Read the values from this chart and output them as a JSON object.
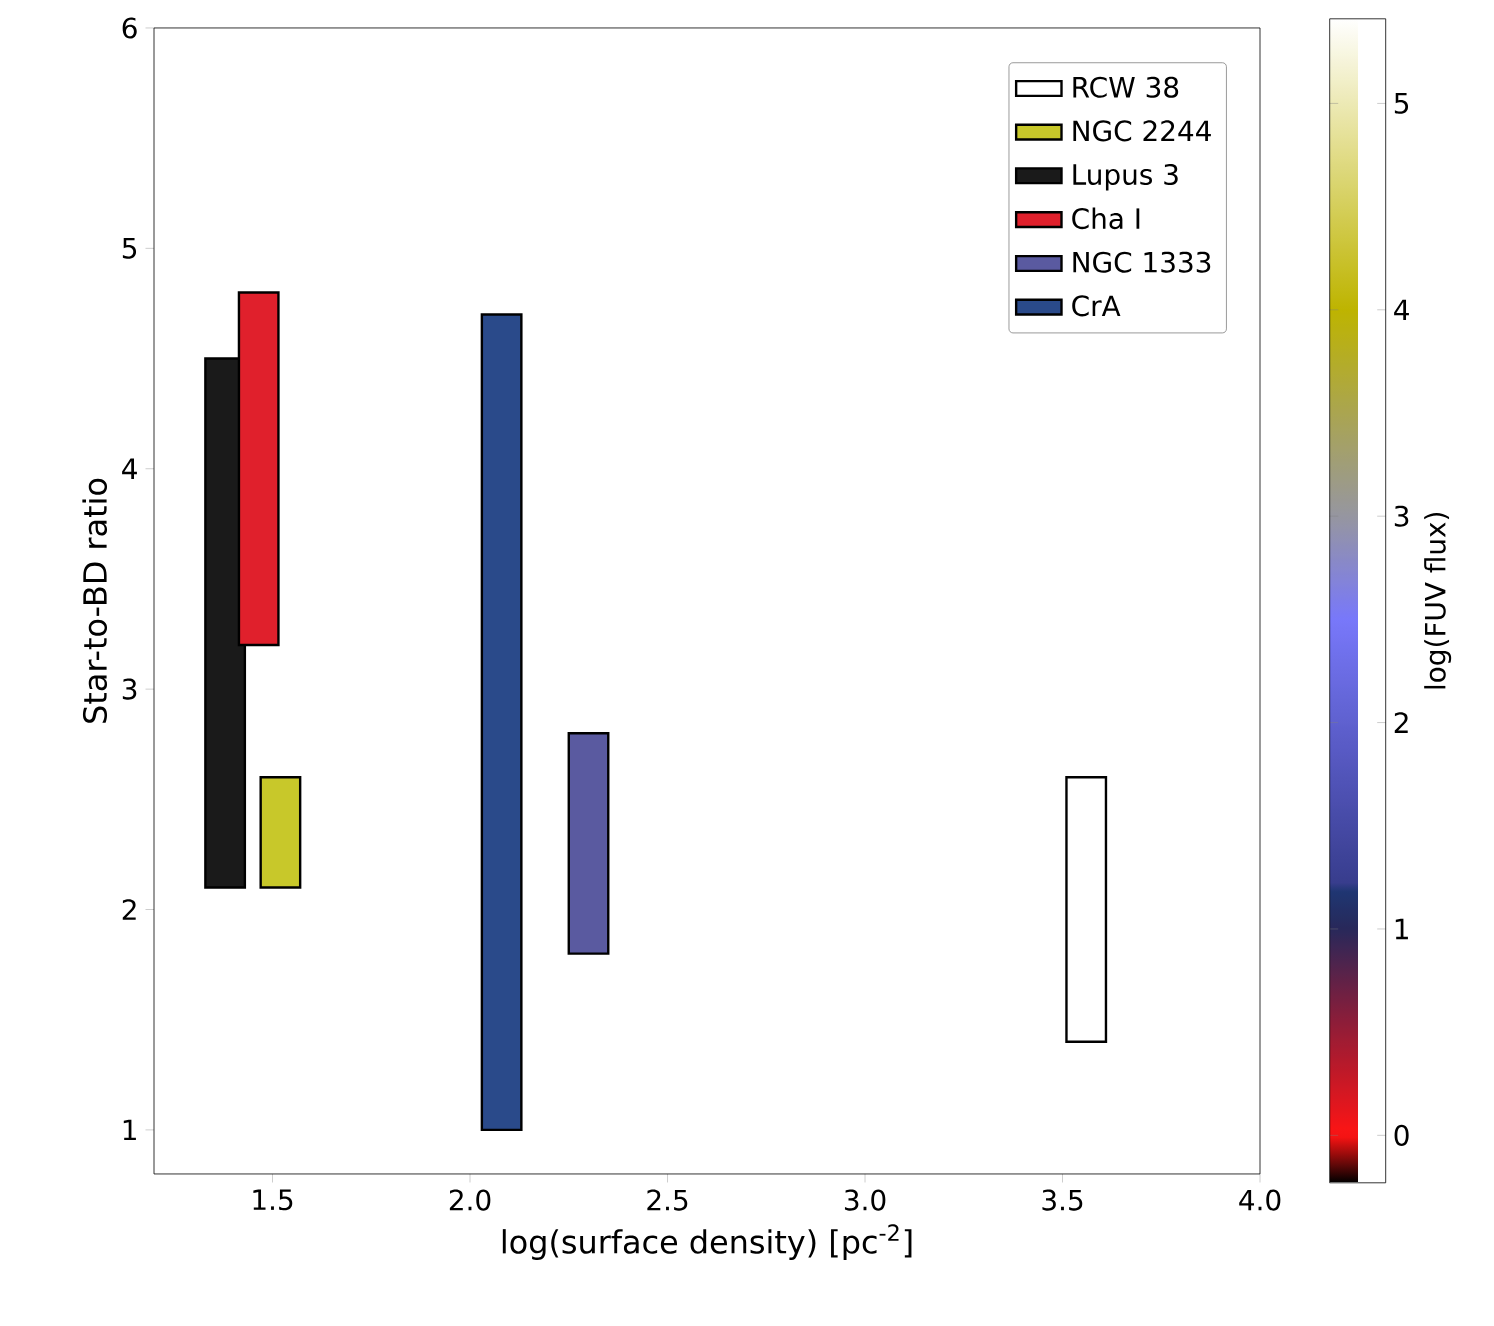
{
  "chart_data": {
    "type": "bar",
    "xlabel": "log(surface density) [pc$^{-2}$]",
    "ylabel": "Star-to-BD ratio",
    "clabel": "log(FUV flux)",
    "xlim": [
      1.2,
      4.0
    ],
    "xticks": [
      1.5,
      {
        "value": 2,
        "label": "2.0"
      },
      2.5,
      {
        "value": 3,
        "label": "3.0"
      },
      3.5,
      {
        "value": 4,
        "label": "4.0"
      }
    ],
    "ylim": [
      0.8,
      6
    ],
    "yticks": [
      1,
      2,
      3,
      4,
      5,
      6
    ],
    "clim": [
      -0.23,
      5.41
    ],
    "cticks": [
      0,
      1,
      2,
      3,
      4,
      5
    ],
    "legend": "top right",
    "grid": false,
    "series": [
      {
        "name": "RCW 38",
        "color": "#ffffff",
        "x": [
          3.56
        ],
        "base": [
          1.4
        ],
        "values": [
          1.2
        ]
      },
      {
        "name": "NGC 2244",
        "color": "#c8c82a",
        "x": [
          1.52
        ],
        "base": [
          2.1
        ],
        "values": [
          0.5
        ]
      },
      {
        "name": "Lupus 3",
        "color": "#1a1a1a",
        "x": [
          1.38
        ],
        "base": [
          2.1
        ],
        "values": [
          2.4
        ]
      },
      {
        "name": "Cha I",
        "color": "#e0202c",
        "x": [
          1.465
        ],
        "base": [
          3.2
        ],
        "values": [
          1.6
        ]
      },
      {
        "name": "NGC 1333",
        "color": "#5a5aa0",
        "x": [
          2.3
        ],
        "base": [
          1.8
        ],
        "values": [
          1.0
        ]
      },
      {
        "name": "CrA",
        "color": "#2a4a8a",
        "x": [
          2.08
        ],
        "base": [
          1.0
        ],
        "values": [
          3.7
        ]
      }
    ]
  }
}
